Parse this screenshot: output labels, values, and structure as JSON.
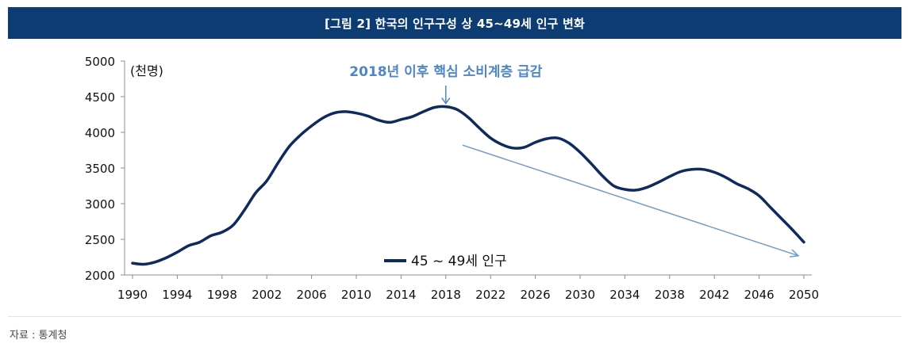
{
  "header": {
    "title": "[그림 2] 한국의 인구구성 상 45~49세 인구 변화"
  },
  "source": {
    "text": "자료 : 통계청"
  },
  "chart_data": {
    "type": "line",
    "title": "[그림 2] 한국의 인구구성 상 45~49세 인구 변화",
    "unit_label": "(천명)",
    "xlabel": "",
    "ylabel": "(천명)",
    "xlim": [
      1990,
      2050
    ],
    "ylim": [
      2000,
      5000
    ],
    "y_ticks": [
      2000,
      2500,
      3000,
      3500,
      4000,
      4500,
      5000
    ],
    "x_ticks": [
      1990,
      1994,
      1998,
      2002,
      2006,
      2010,
      2014,
      2018,
      2022,
      2026,
      2030,
      2034,
      2038,
      2042,
      2046,
      2050
    ],
    "grid": false,
    "legend": {
      "position": "bottom-center",
      "entries": [
        "45 ~ 49세 인구"
      ]
    },
    "series": [
      {
        "name": "45 ~ 49세 인구",
        "color": "#0f2a5c",
        "x": [
          1990,
          1991,
          1992,
          1993,
          1994,
          1995,
          1996,
          1997,
          1998,
          1999,
          2000,
          2001,
          2002,
          2003,
          2004,
          2005,
          2006,
          2007,
          2008,
          2009,
          2010,
          2011,
          2012,
          2013,
          2014,
          2015,
          2016,
          2017,
          2018,
          2019,
          2020,
          2021,
          2022,
          2023,
          2024,
          2025,
          2026,
          2027,
          2028,
          2029,
          2030,
          2031,
          2032,
          2033,
          2034,
          2035,
          2036,
          2037,
          2038,
          2039,
          2040,
          2041,
          2042,
          2043,
          2044,
          2045,
          2046,
          2047,
          2048,
          2049,
          2050
        ],
        "values": [
          2165,
          2150,
          2180,
          2240,
          2320,
          2410,
          2460,
          2550,
          2600,
          2700,
          2910,
          3150,
          3320,
          3570,
          3800,
          3960,
          4090,
          4200,
          4270,
          4290,
          4270,
          4230,
          4170,
          4140,
          4180,
          4220,
          4290,
          4350,
          4360,
          4320,
          4210,
          4060,
          3920,
          3830,
          3780,
          3790,
          3860,
          3910,
          3920,
          3850,
          3720,
          3560,
          3390,
          3250,
          3200,
          3190,
          3230,
          3300,
          3380,
          3450,
          3480,
          3480,
          3440,
          3370,
          3280,
          3210,
          3110,
          2950,
          2790,
          2630,
          2460
        ]
      }
    ],
    "annotations": [
      {
        "text": "2018년 이후 핵심 소비계층 급감",
        "color": "#4f86c6",
        "points_to": {
          "x": 2018,
          "y": 4360
        }
      },
      {
        "type": "trend-arrow",
        "color": "#6d9bd1",
        "from": {
          "x": 2019.5,
          "y": 3820
        },
        "to": {
          "x": 2049.5,
          "y": 2270
        }
      }
    ]
  }
}
